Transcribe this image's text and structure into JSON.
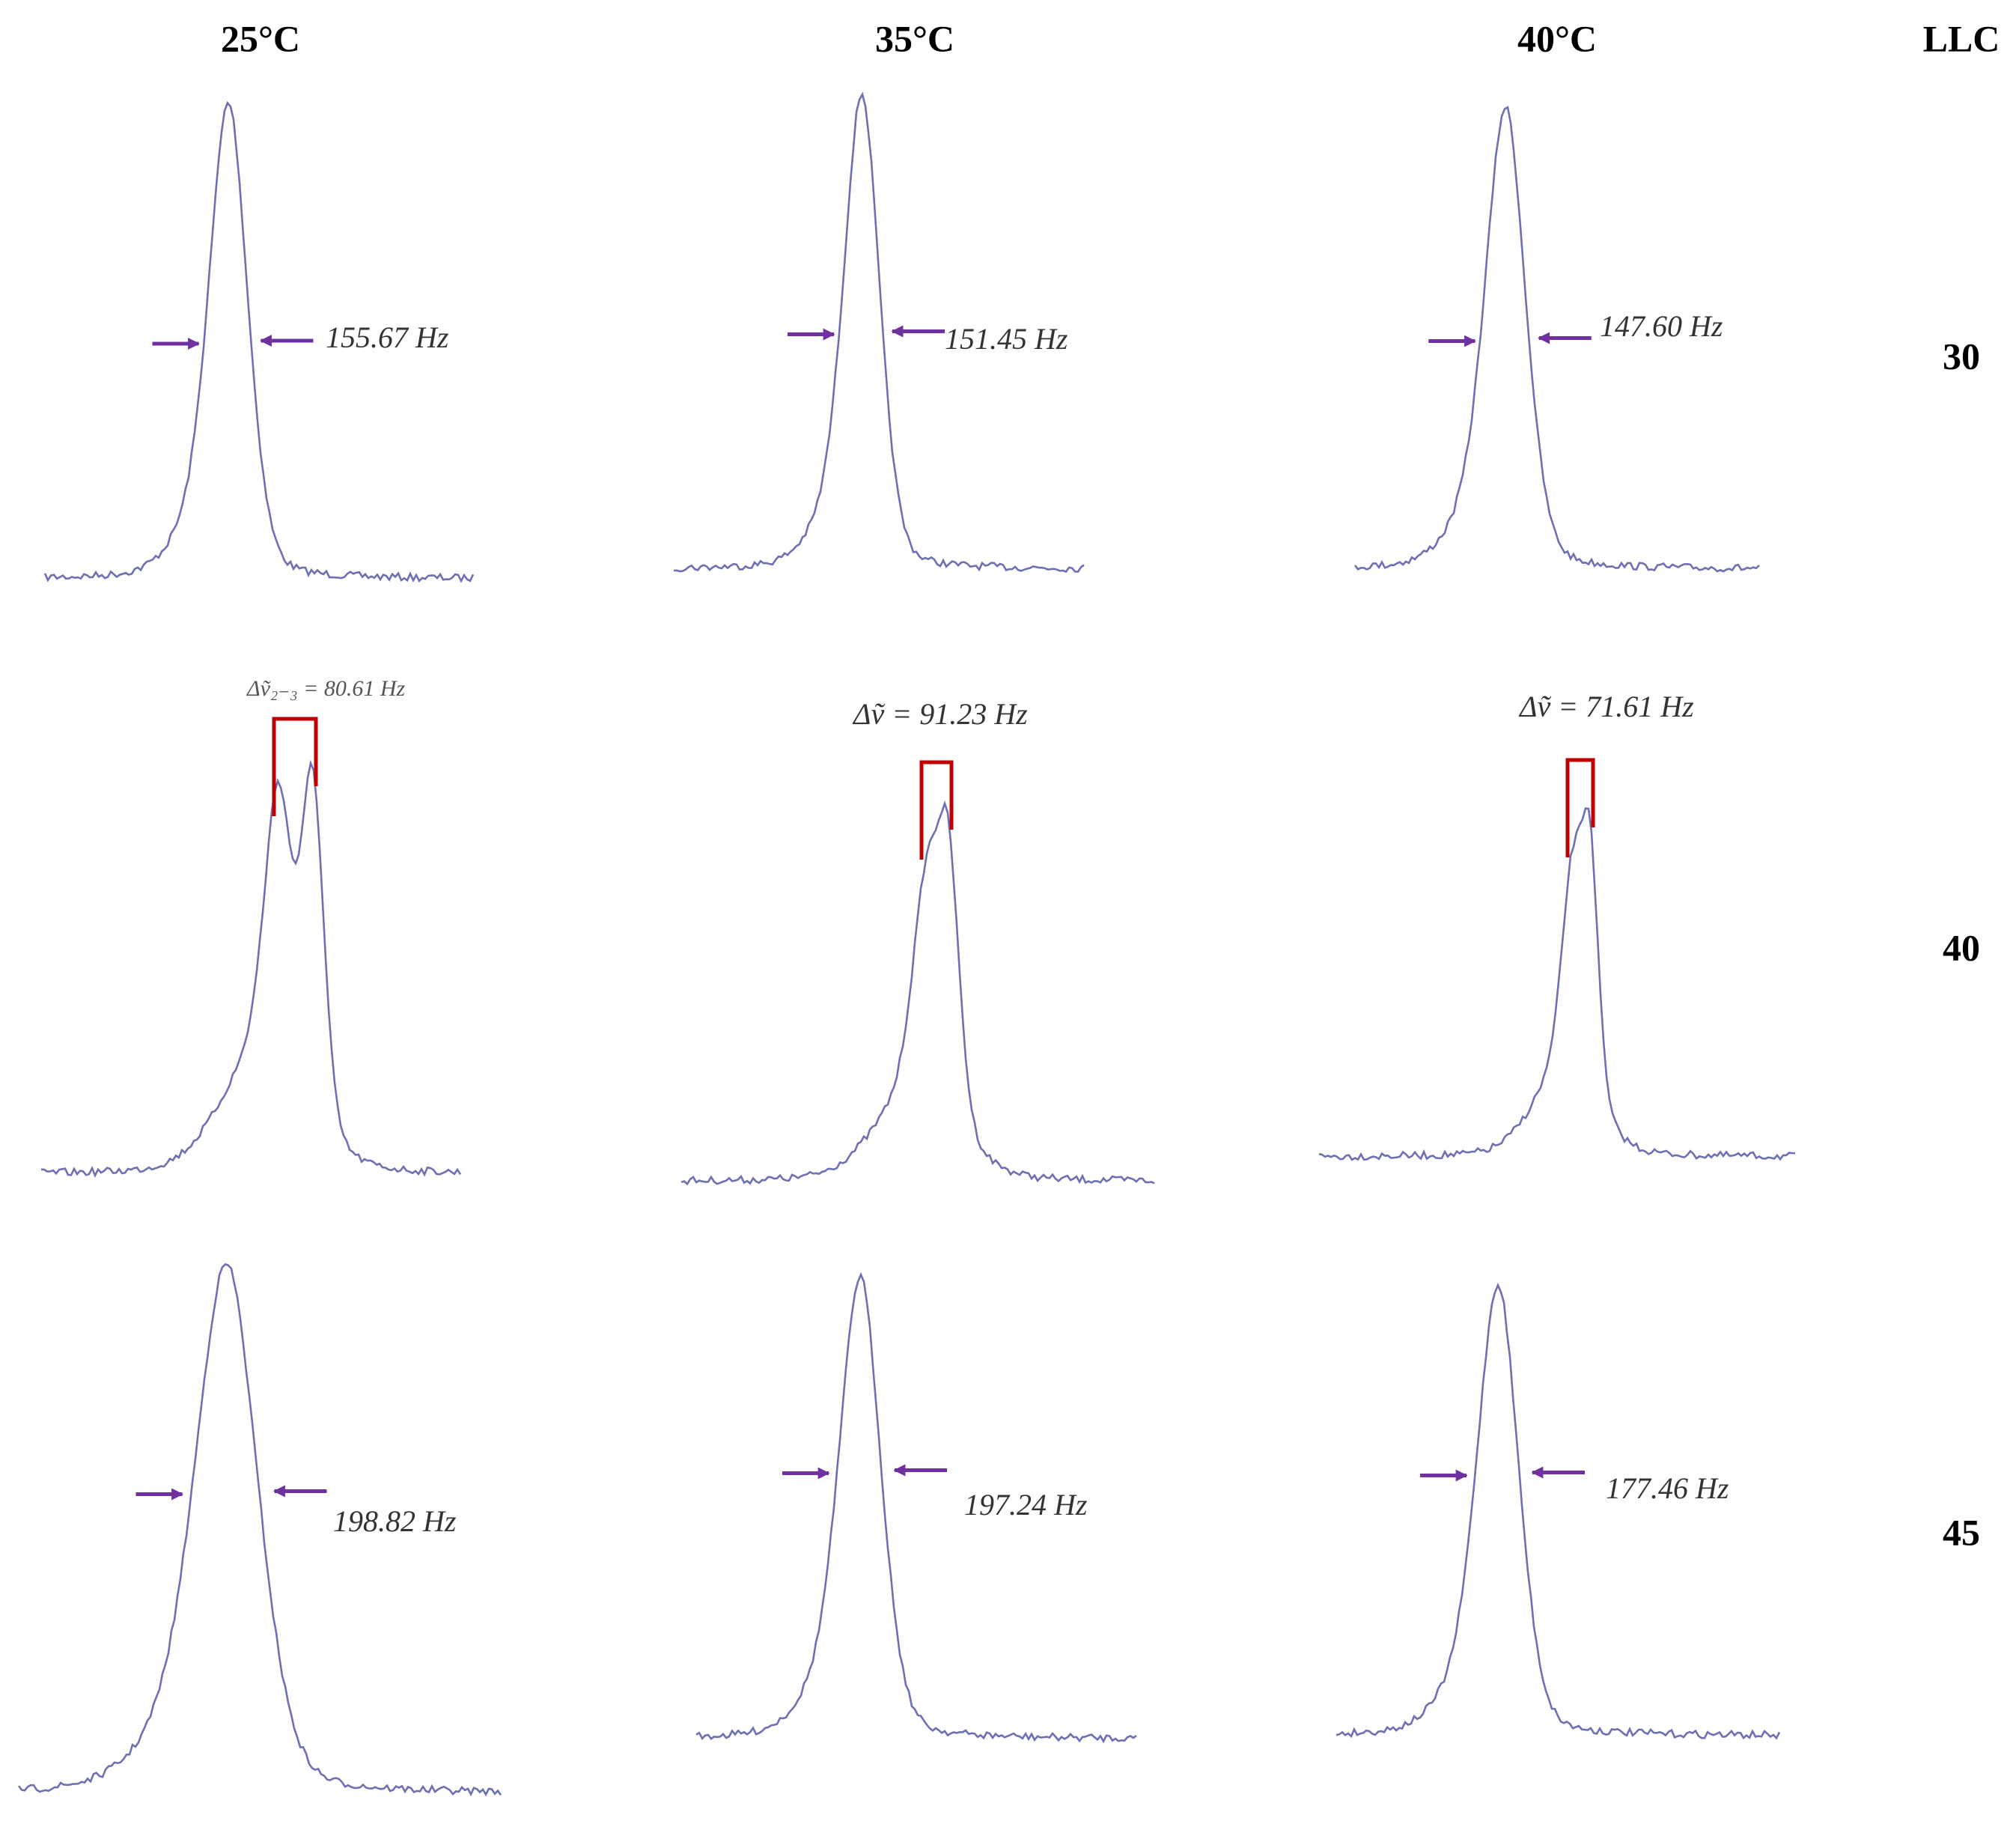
{
  "header": {
    "columns": [
      "25°C",
      "35°C",
      "40°C"
    ],
    "corner": "LLC"
  },
  "rows": [
    {
      "label": "30",
      "annotations": [
        "155.67 Hz",
        "151.45 Hz",
        "147.60 Hz"
      ]
    },
    {
      "label": "40",
      "annotations": [
        "Δṽ₂₋₃ = 80.61 Hz",
        "Δṽ = 91.23 Hz",
        "Δṽ = 71.61 Hz"
      ]
    },
    {
      "label": "45",
      "annotations": [
        "198.82 Hz",
        "197.24 Hz",
        "177.46 Hz"
      ]
    }
  ]
}
